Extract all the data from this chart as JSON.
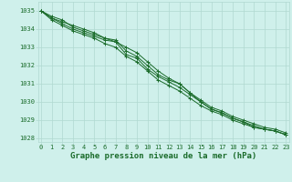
{
  "title": "Graphe pression niveau de la mer (hPa)",
  "background_color": "#cff0eb",
  "grid_color": "#b0d8d0",
  "line_color": "#1a6b2a",
  "x_min": 0,
  "x_max": 23,
  "y_min": 1027.8,
  "y_max": 1035.5,
  "series": [
    [
      1035.0,
      1034.6,
      1034.4,
      1034.2,
      1034.0,
      1033.8,
      1033.5,
      1033.3,
      1033.0,
      1032.7,
      1032.2,
      1031.7,
      1031.3,
      1031.0,
      1030.5,
      1030.0,
      1029.6,
      1029.4,
      1029.1,
      1028.9,
      1028.6,
      1028.5,
      1028.4,
      1028.2
    ],
    [
      1035.0,
      1034.5,
      1034.2,
      1033.9,
      1033.7,
      1033.5,
      1033.2,
      1033.0,
      1032.5,
      1032.2,
      1031.7,
      1031.2,
      1030.9,
      1030.6,
      1030.2,
      1029.8,
      1029.5,
      1029.3,
      1029.0,
      1028.8,
      1028.6,
      1028.5,
      1028.4,
      1028.2
    ],
    [
      1035.0,
      1034.6,
      1034.3,
      1034.0,
      1033.8,
      1033.6,
      1033.4,
      1033.3,
      1032.6,
      1032.4,
      1031.8,
      1031.4,
      1031.1,
      1030.8,
      1030.4,
      1030.0,
      1029.6,
      1029.4,
      1029.1,
      1028.9,
      1028.7,
      1028.5,
      1028.4,
      1028.2
    ],
    [
      1035.0,
      1034.7,
      1034.5,
      1034.1,
      1033.9,
      1033.7,
      1033.5,
      1033.4,
      1032.8,
      1032.5,
      1032.0,
      1031.5,
      1031.2,
      1031.0,
      1030.5,
      1030.1,
      1029.7,
      1029.5,
      1029.2,
      1029.0,
      1028.8,
      1028.6,
      1028.5,
      1028.3
    ]
  ],
  "xticks": [
    0,
    1,
    2,
    3,
    4,
    5,
    6,
    7,
    8,
    9,
    10,
    11,
    12,
    13,
    14,
    15,
    16,
    17,
    18,
    19,
    20,
    21,
    22,
    23
  ],
  "yticks": [
    1028,
    1029,
    1030,
    1031,
    1032,
    1033,
    1034,
    1035
  ],
  "title_fontsize": 6.5,
  "tick_fontsize": 5.0
}
